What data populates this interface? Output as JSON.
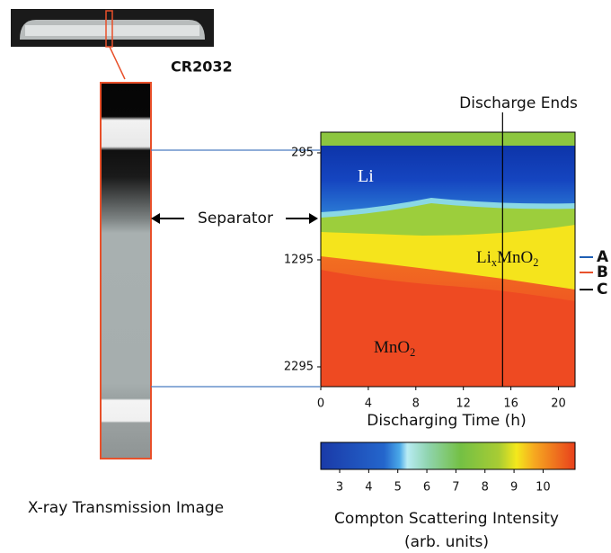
{
  "figure": {
    "coin_label": "CR2032",
    "image_caption": "X-ray Transmission Image",
    "separator_label": "Separator"
  },
  "chart_data": {
    "type": "heatmap",
    "title": "Discharge Ends",
    "x_label": "Discharging Time (h)",
    "xlim": [
      0,
      21.4
    ],
    "xticks": [
      0,
      4,
      8,
      12,
      16,
      20
    ],
    "ylim": [
      102,
      2480
    ],
    "yticks": [
      295,
      1295,
      2295
    ],
    "discharge_end": 15.3,
    "region_labels": [
      {
        "parts": [
          "Li"
        ],
        "color": "#ffffff"
      },
      {
        "parts": [
          "Li",
          "x",
          "MnO",
          "2"
        ],
        "color": "#111111"
      },
      {
        "parts": [
          "MnO",
          "2"
        ],
        "color": "#111111"
      }
    ],
    "markers": [
      {
        "label": "A",
        "color": "#1f5fb4",
        "y": 1270
      },
      {
        "label": "B",
        "color": "#e8502a",
        "y": 1413
      },
      {
        "label": "C",
        "color": "#111111",
        "y": 1573
      }
    ],
    "colorbar": {
      "label": "Compton Scattering Intensity",
      "units": "(arb. units)",
      "lim": [
        2.35,
        11.1
      ],
      "ticks": [
        3,
        4,
        5,
        6,
        7,
        8,
        9,
        10
      ]
    }
  }
}
